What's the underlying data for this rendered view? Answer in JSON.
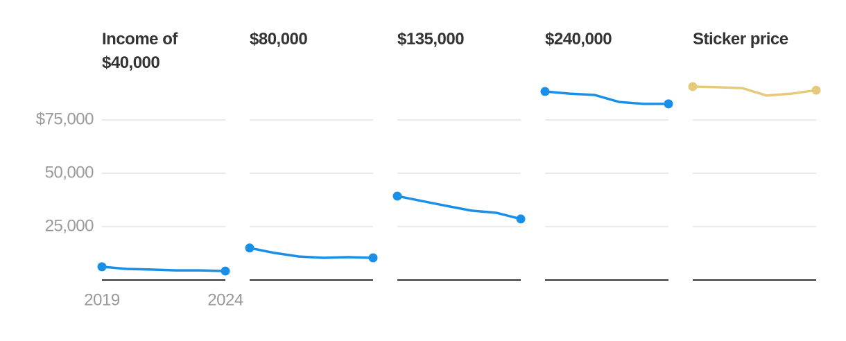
{
  "chart_data": [
    {
      "type": "line",
      "title": "Income of $40,000",
      "x": [
        2019,
        2020,
        2021,
        2022,
        2023,
        2024
      ],
      "values": [
        6200,
        5200,
        4900,
        4500,
        4500,
        4200
      ],
      "color": "#1a8fe8",
      "ylim": [
        0,
        100000
      ],
      "yticks": [
        {
          "value": 25000,
          "label": "25,000"
        },
        {
          "value": 50000,
          "label": "50,000"
        },
        {
          "value": 75000,
          "label": "$75,000"
        }
      ],
      "xlim": [
        2019,
        2024
      ],
      "xticks": [
        2019,
        2024
      ],
      "grid": true
    },
    {
      "type": "line",
      "title": "$80,000",
      "x": [
        2019,
        2020,
        2021,
        2022,
        2023,
        2024
      ],
      "values": [
        15000,
        12700,
        11000,
        10400,
        10700,
        10400
      ],
      "color": "#1a8fe8",
      "ylim": [
        0,
        100000
      ],
      "yticks": [
        25000,
        50000,
        75000
      ],
      "xlim": [
        2019,
        2024
      ],
      "grid": true
    },
    {
      "type": "line",
      "title": "$135,000",
      "x": [
        2019,
        2020,
        2021,
        2022,
        2023,
        2024
      ],
      "values": [
        39300,
        37000,
        34700,
        32500,
        31500,
        28600
      ],
      "color": "#1a8fe8",
      "ylim": [
        0,
        100000
      ],
      "yticks": [
        25000,
        50000,
        75000
      ],
      "xlim": [
        2019,
        2024
      ],
      "grid": true
    },
    {
      "type": "line",
      "title": "$240,000",
      "x": [
        2019,
        2020,
        2021,
        2022,
        2023,
        2024
      ],
      "values": [
        88300,
        87300,
        86700,
        83400,
        82500,
        82500
      ],
      "color": "#1a8fe8",
      "ylim": [
        0,
        100000
      ],
      "yticks": [
        25000,
        50000,
        75000
      ],
      "xlim": [
        2019,
        2024
      ],
      "grid": true
    },
    {
      "type": "line",
      "title": "Sticker price",
      "x": [
        2019,
        2020,
        2021,
        2022,
        2023,
        2024
      ],
      "values": [
        90600,
        90300,
        89900,
        86400,
        87300,
        88900
      ],
      "color": "#e6c97a",
      "ylim": [
        0,
        100000
      ],
      "yticks": [
        25000,
        50000,
        75000
      ],
      "xlim": [
        2019,
        2024
      ],
      "grid": true
    }
  ]
}
